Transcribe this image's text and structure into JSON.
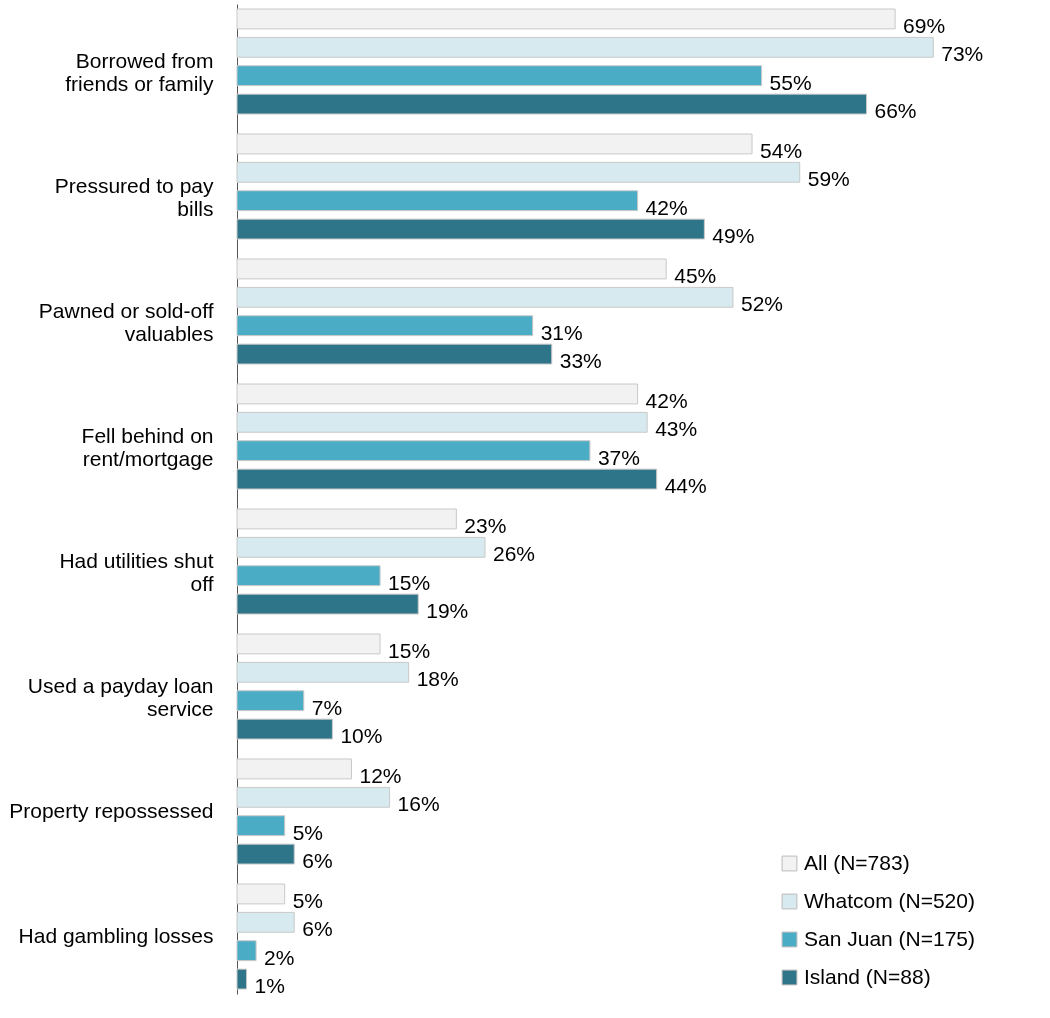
{
  "chart_data": {
    "type": "bar",
    "orientation": "horizontal",
    "legend": "bottom right",
    "grid": false,
    "categories": [
      "Borrowed from friends or family",
      "Pressured to pay bills",
      "Pawned or sold-off valuables",
      "Fell behind on rent/mortgage",
      "Had utilities shut off",
      "Used a payday loan service",
      "Property repossessed",
      "Had gambling losses"
    ],
    "series": [
      {
        "name": "All (N=783)",
        "color": "#f2f2f2",
        "values": [
          69,
          54,
          45,
          42,
          23,
          15,
          12,
          5
        ],
        "value_labels": [
          "69%",
          "54%",
          "45%",
          "42%",
          "23%",
          "15%",
          "12%",
          "5%"
        ]
      },
      {
        "name": "Whatcom (N=520)",
        "color": "#d6eaf0",
        "values": [
          73,
          59,
          52,
          43,
          26,
          18,
          16,
          6
        ],
        "value_labels": [
          "73%",
          "59%",
          "52%",
          "43%",
          "26%",
          "18%",
          "16%",
          "6%"
        ]
      },
      {
        "name": "San Juan (N=175)",
        "color": "#4bacc6",
        "values": [
          55,
          42,
          31,
          37,
          15,
          7,
          5,
          2
        ],
        "value_labels": [
          "55%",
          "42%",
          "31%",
          "37%",
          "15%",
          "7%",
          "5%",
          "2%"
        ]
      },
      {
        "name": "Island (N=88)",
        "color": "#2e7589",
        "values": [
          66,
          49,
          33,
          44,
          19,
          10,
          6,
          1
        ],
        "value_labels": [
          "66%",
          "49%",
          "33%",
          "44%",
          "19%",
          "10%",
          "6%",
          "1%"
        ]
      }
    ]
  }
}
